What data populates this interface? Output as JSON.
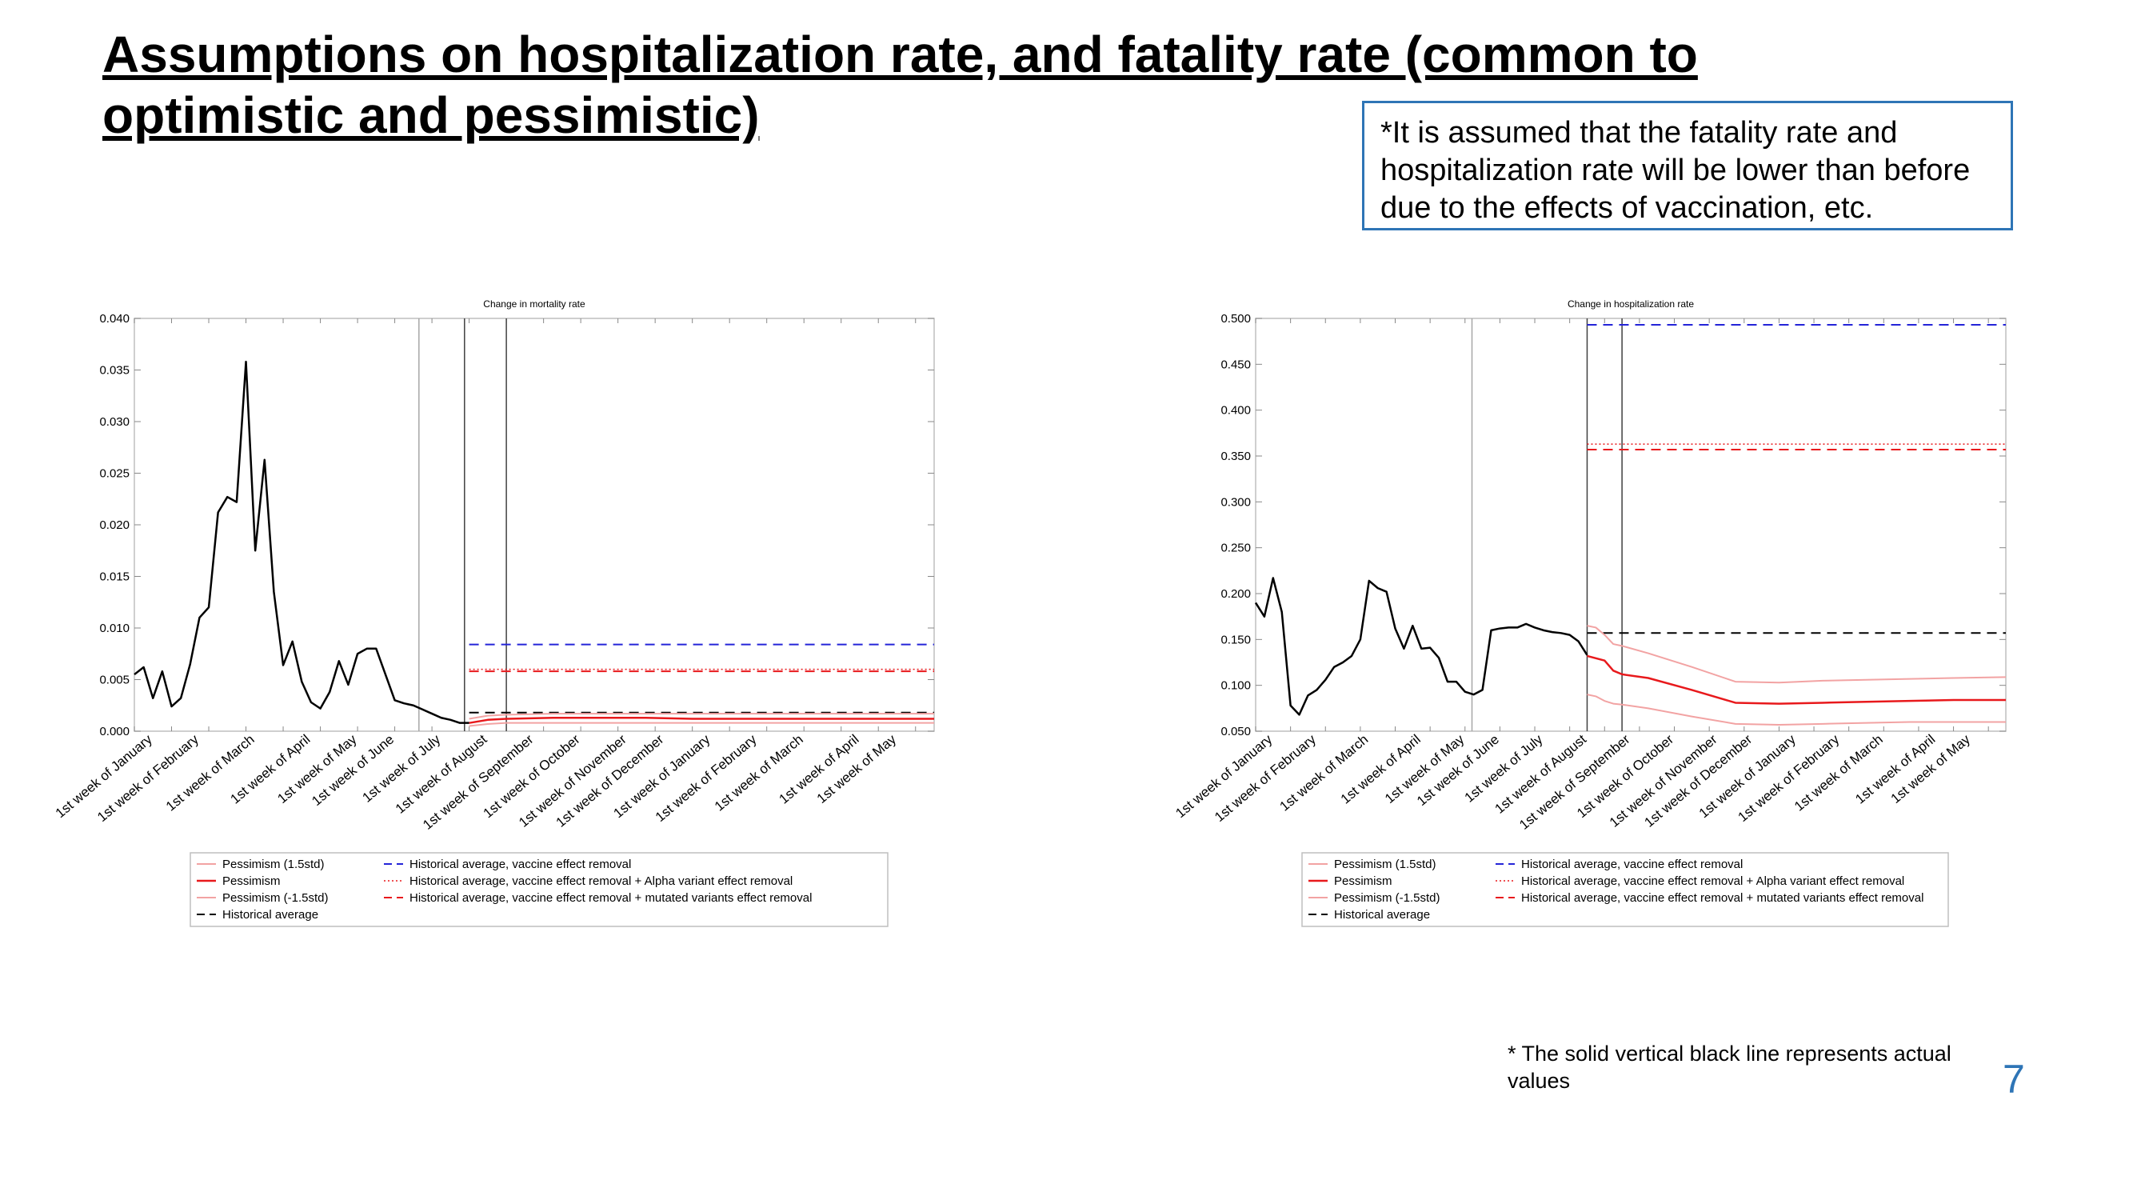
{
  "slide": {
    "title": "Assumptions on hospitalization rate, and fatality rate (common to optimistic and pessimistic)",
    "note": "*It is assumed that the fatality rate and hospitalization rate will be lower than before due to the effects of vaccination, etc.",
    "footnote": "* The solid vertical black line represents actual values",
    "page_number": "7",
    "colors": {
      "accent": "#2e75b6",
      "red": "#e8191c",
      "pink": "#f2a3a3",
      "blue": "#2424d8",
      "black": "#000000"
    }
  },
  "chart_data": [
    {
      "type": "line",
      "title": "Change in mortality rate",
      "ylim": [
        0,
        0.04
      ],
      "yticks": [
        "0.000",
        "0.005",
        "0.010",
        "0.015",
        "0.020",
        "0.025",
        "0.030",
        "0.035",
        "0.040"
      ],
      "x_count": 87,
      "categories": [
        "1st week of January",
        "1st week of February",
        "1st week of March",
        "1st week of April",
        "1st week of May",
        "1st week of June",
        "1st week of July",
        "1st week of August",
        "1st week of September",
        "1st week of October",
        "1st week of November",
        "1st week of December",
        "1st week of January",
        "1st week of February",
        "1st week of March",
        "1st week of April",
        "1st week of May"
      ],
      "category_x": [
        2,
        7,
        13,
        19,
        24,
        28,
        33,
        38,
        43,
        48,
        53,
        57,
        62,
        67,
        72,
        78,
        82
      ],
      "vlines_actual": [
        35.5,
        40
      ],
      "vline_gray": 30.6,
      "historical": {
        "x": [
          0,
          1,
          2,
          3,
          4,
          5,
          6,
          7,
          8,
          9,
          10,
          11,
          12,
          13,
          14,
          15,
          16,
          17,
          18,
          19,
          20,
          21,
          22,
          23,
          24,
          25,
          26,
          27,
          28,
          29,
          30,
          31,
          32,
          33,
          34,
          35,
          36
        ],
        "y": [
          0.0055,
          0.0062,
          0.0032,
          0.0058,
          0.0024,
          0.0032,
          0.0065,
          0.011,
          0.012,
          0.0212,
          0.0227,
          0.0222,
          0.0358,
          0.0175,
          0.0263,
          0.0135,
          0.0064,
          0.0087,
          0.0048,
          0.0028,
          0.0022,
          0.0038,
          0.0068,
          0.0045,
          0.0075,
          0.008,
          0.008,
          0.0055,
          0.003,
          0.0027,
          0.0025,
          0.0021,
          0.0017,
          0.0013,
          0.0011,
          0.0008,
          0.0008
        ]
      },
      "projection_start": 36,
      "pessimism_plus": {
        "x": [
          36,
          38,
          40,
          45,
          50,
          55,
          60,
          65,
          70,
          75,
          80,
          86
        ],
        "y": [
          0.0012,
          0.0015,
          0.0016,
          0.0017,
          0.0017,
          0.0017,
          0.0017,
          0.0017,
          0.0017,
          0.0017,
          0.0017,
          0.0017
        ]
      },
      "pessimism": {
        "x": [
          36,
          38,
          40,
          45,
          50,
          55,
          60,
          65,
          70,
          75,
          80,
          86
        ],
        "y": [
          0.0008,
          0.0011,
          0.0012,
          0.0013,
          0.0013,
          0.0013,
          0.0012,
          0.0012,
          0.0012,
          0.0012,
          0.0012,
          0.0012
        ]
      },
      "pessimism_minus": {
        "x": [
          36,
          38,
          40,
          45,
          50,
          55,
          60,
          65,
          70,
          75,
          80,
          86
        ],
        "y": [
          0.0005,
          0.0007,
          0.0008,
          0.0008,
          0.0008,
          0.0008,
          0.0008,
          0.0008,
          0.0008,
          0.0008,
          0.0008,
          0.0008
        ]
      },
      "hlines": [
        {
          "name": "Historical average",
          "y": 0.0018,
          "color": "#000000",
          "dash": "12,8",
          "width": 2
        },
        {
          "name": "Historical average, vaccine effect removal",
          "y": 0.0084,
          "color": "#2424d8",
          "dash": "12,8",
          "width": 2
        },
        {
          "name": "Historical average, vaccine effect removal + Alpha variant effect removal",
          "y": 0.006,
          "color": "#e8191c",
          "dash": "2,3",
          "width": 1.5
        },
        {
          "name": "Historical average, vaccine effect removal + mutated variants effect removal",
          "y": 0.0058,
          "color": "#e8191c",
          "dash": "12,8",
          "width": 2
        }
      ],
      "legend": {
        "left": [
          "Pessimism (1.5std)",
          "Pessimism",
          "Pessimism (-1.5std)",
          "Historical average"
        ],
        "right": [
          "Historical average, vaccine effect removal",
          "Historical average, vaccine effect removal + Alpha variant effect removal",
          "Historical average, vaccine effect removal + mutated variants effect removal"
        ],
        "placement": "bottom"
      }
    },
    {
      "type": "line",
      "title": "Change in hospitalization rate",
      "ylim": [
        0.05,
        0.5
      ],
      "yticks": [
        "0.050",
        "0.100",
        "0.150",
        "0.200",
        "0.250",
        "0.300",
        "0.350",
        "0.400",
        "0.450",
        "0.500"
      ],
      "x_count": 87,
      "categories": [
        "1st week of January",
        "1st week of February",
        "1st week of March",
        "1st week of April",
        "1st week of May",
        "1st week of June",
        "1st week of July",
        "1st week of August",
        "1st week of September",
        "1st week of October",
        "1st week of November",
        "1st week of December",
        "1st week of January",
        "1st week of February",
        "1st week of March",
        "1st week of April",
        "1st week of May"
      ],
      "category_x": [
        2,
        7,
        13,
        19,
        24,
        28,
        33,
        38,
        43,
        48,
        53,
        57,
        62,
        67,
        72,
        78,
        82
      ],
      "vlines_actual": [
        38,
        42
      ],
      "vline_gray": 24.8,
      "historical": {
        "x": [
          0,
          1,
          2,
          3,
          4,
          5,
          6,
          7,
          8,
          9,
          10,
          11,
          12,
          13,
          14,
          15,
          16,
          17,
          18,
          19,
          20,
          21,
          22,
          23,
          24,
          25,
          26,
          27,
          28,
          29,
          30,
          31,
          32,
          33,
          34,
          35,
          36,
          37,
          38
        ],
        "y": [
          0.19,
          0.175,
          0.217,
          0.18,
          0.078,
          0.068,
          0.089,
          0.095,
          0.106,
          0.12,
          0.125,
          0.132,
          0.15,
          0.214,
          0.206,
          0.202,
          0.162,
          0.14,
          0.165,
          0.14,
          0.141,
          0.13,
          0.104,
          0.104,
          0.093,
          0.09,
          0.095,
          0.16,
          0.162,
          0.163,
          0.163,
          0.167,
          0.163,
          0.16,
          0.158,
          0.157,
          0.155,
          0.148,
          0.133
        ]
      },
      "projection_start": 38,
      "pessimism_plus": {
        "x": [
          38,
          39,
          40,
          41,
          42,
          45,
          50,
          55,
          60,
          65,
          70,
          75,
          80,
          86
        ],
        "y": [
          0.165,
          0.163,
          0.155,
          0.145,
          0.143,
          0.135,
          0.12,
          0.104,
          0.103,
          0.105,
          0.106,
          0.107,
          0.108,
          0.109
        ]
      },
      "pessimism": {
        "x": [
          38,
          40,
          41,
          42,
          45,
          50,
          55,
          60,
          65,
          70,
          75,
          80,
          86
        ],
        "y": [
          0.132,
          0.127,
          0.116,
          0.112,
          0.108,
          0.095,
          0.081,
          0.08,
          0.081,
          0.082,
          0.083,
          0.084,
          0.084
        ]
      },
      "pessimism_minus": {
        "x": [
          38,
          39,
          40,
          41,
          42,
          45,
          50,
          55,
          60,
          65,
          70,
          75,
          80,
          86
        ],
        "y": [
          0.09,
          0.088,
          0.083,
          0.08,
          0.079,
          0.075,
          0.066,
          0.058,
          0.057,
          0.058,
          0.059,
          0.06,
          0.06,
          0.06
        ]
      },
      "hlines": [
        {
          "name": "Historical average",
          "y": 0.157,
          "color": "#000000",
          "dash": "12,8",
          "width": 2
        },
        {
          "name": "Historical average, vaccine effect removal",
          "y": 0.493,
          "color": "#2424d8",
          "dash": "12,8",
          "width": 2
        },
        {
          "name": "Historical average, vaccine effect removal + Alpha variant effect removal",
          "y": 0.363,
          "color": "#e8191c",
          "dash": "2,3",
          "width": 1.5
        },
        {
          "name": "Historical average, vaccine effect removal + mutated variants effect removal",
          "y": 0.357,
          "color": "#e8191c",
          "dash": "12,8",
          "width": 2
        }
      ],
      "legend": {
        "left": [
          "Pessimism (1.5std)",
          "Pessimism",
          "Pessimism (-1.5std)",
          "Historical average"
        ],
        "right": [
          "Historical average, vaccine effect removal",
          "Historical average, vaccine effect removal + Alpha variant effect removal",
          "Historical average, vaccine effect removal + mutated variants effect removal"
        ],
        "placement": "bottom"
      }
    }
  ]
}
